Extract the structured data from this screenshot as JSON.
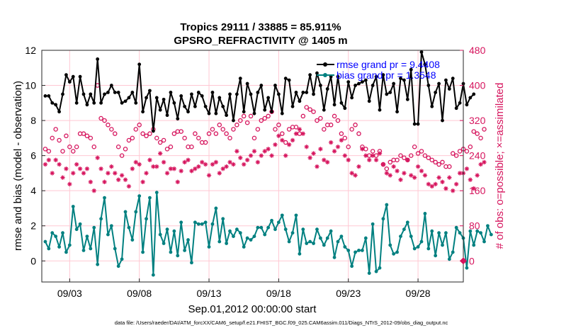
{
  "chart_data": {
    "type": "line",
    "title_line1": "Tropics 29111 / 33885 = 85.911%",
    "title_line2": "GPSRO_REFRACTIVITY @ 1405 m",
    "xlabel": "Sep.01,2012 00:00:00 start",
    "ylabel_left": "rmse and bias (model - observation)",
    "ylabel_right": "# of obs: o=possible; ×=assimilated",
    "x_tick_labels": [
      "09/03",
      "09/08",
      "09/13",
      "09/18",
      "09/23",
      "09/28"
    ],
    "x_tick_days": [
      3,
      8,
      13,
      18,
      23,
      28
    ],
    "xlim_days": [
      1,
      31.25
    ],
    "ylim_left": [
      -1.2,
      12
    ],
    "y_ticks_left": [
      "0",
      "2",
      "4",
      "6",
      "8",
      "10",
      "12"
    ],
    "ylim_right": [
      -48,
      480
    ],
    "y_ticks_right": [
      "0",
      "80",
      "160",
      "240",
      "320",
      "400",
      "480"
    ],
    "legend": [
      {
        "label": "rmse grand pr = 9.4408",
        "color": "#000000"
      },
      {
        "label": "bias grand pr = 1.3548",
        "color": "#008080"
      }
    ],
    "colors": {
      "rmse": "#000000",
      "bias": "#008080",
      "obs": "#d6145d",
      "legend_text": "#0000ff",
      "grid": "#ffc8d3"
    },
    "series": [
      {
        "name": "rmse",
        "axis": "left",
        "values": [
          9.4,
          9.4,
          9.0,
          8.9,
          8.5,
          9.5,
          10.6,
          10.2,
          10.5,
          9.0,
          10.5,
          9.5,
          8.9,
          9.5,
          9.0,
          11.5,
          9.0,
          9.5,
          9.6,
          10.0,
          9.6,
          9.6,
          9.0,
          9.1,
          9.3,
          9.6,
          9.0,
          11.2,
          8.5,
          9.3,
          9.7,
          7.4,
          9.3,
          8.6,
          9.2,
          8.3,
          9.6,
          9.0,
          8.1,
          9.4,
          8.8,
          8.5,
          9.5,
          8.8,
          9.6,
          9.4,
          8.8,
          8.4,
          9.6,
          8.4,
          9.3,
          8.8,
          8.3,
          9.5,
          8.0,
          9.5,
          10.4,
          8.5,
          10.1,
          9.5,
          8.4,
          9.6,
          10.0,
          8.6,
          9.3,
          8.5,
          10.0,
          9.5,
          8.4,
          10.4,
          10.3,
          8.8,
          9.6,
          9.1,
          9.6,
          9.6,
          10.6,
          9.5,
          10.7,
          10.0,
          8.6,
          9.8,
          10.5,
          8.9,
          10.5,
          9.0,
          8.7,
          10.2,
          9.3,
          10.0,
          10.1,
          10.2,
          10.3,
          9.1,
          10.0,
          10.5,
          8.6,
          10.6,
          9.5,
          9.6,
          10.1,
          8.5,
          10.4,
          10.3,
          9.2,
          10.9,
          7.8,
          7.8,
          11.9,
          11.2,
          10.0,
          8.8,
          9.6,
          10.1,
          8.0,
          10.3,
          9.8,
          10.4,
          8.7,
          9.0,
          10.1,
          8.9,
          9.3,
          9.5
        ]
      },
      {
        "name": "bias",
        "axis": "left",
        "values": [
          1.1,
          0.7,
          1.6,
          1.4,
          0.8,
          1.6,
          0.5,
          0.9,
          3.1,
          1.8,
          2.1,
          0.6,
          1.4,
          0.7,
          1.9,
          -0.2,
          2.4,
          3.6,
          1.5,
          2.0,
          0.7,
          -0.3,
          0.1,
          2.8,
          1.9,
          1.2,
          2.8,
          3.7,
          0.5,
          2.4,
          3.6,
          -0.8,
          3.9,
          1.5,
          1.0,
          1.8,
          0.5,
          1.7,
          0.3,
          2.2,
          0.6,
          1.2,
          -0.1,
          2.2,
          2.1,
          2.1,
          2.2,
          0.8,
          2.1,
          3.0,
          1.1,
          2.4,
          1.0,
          1.7,
          1.4,
          1.8,
          1.6,
          0.8,
          1.3,
          1.2,
          1.4,
          1.9,
          1.9,
          1.5,
          1.9,
          2.3,
          1.8,
          2.2,
          2.6,
          1.8,
          1.1,
          1.6,
          2.6,
          0.4,
          1.8,
          1.0,
          1.1,
          1.0,
          1.8,
          1.3,
          0.9,
          1.3,
          1.7,
          0.2,
          1.1,
          1.4,
          0.8,
          0.6,
          -0.3,
          0.5,
          0.6,
          0.6,
          1.3,
          -0.7,
          2.1,
          -0.6,
          -0.4,
          2.4,
          3.2,
          0.9,
          0.4,
          0.5,
          1.4,
          1.8,
          2.2,
          1.4,
          0.7,
          0.8,
          1.1,
          2.7,
          0.7,
          1.7,
          0.3,
          1.6,
          0.9,
          1.6,
          0.1,
          0.5,
          1.9,
          1.6,
          1.3,
          -0.4,
          1.7,
          0.9,
          1.7,
          1.6,
          1.1,
          2.0,
          1.5
        ]
      },
      {
        "name": "possible",
        "axis": "right",
        "values": [
          255,
          250,
          280,
          300,
          275,
          250,
          285,
          260,
          250,
          260,
          290,
          290,
          285,
          280,
          260,
          400,
          325,
          320,
          310,
          300,
          290,
          260,
          240,
          255,
          275,
          280,
          300,
          310,
          290,
          285,
          290,
          300,
          280,
          270,
          275,
          255,
          260,
          290,
          295,
          295,
          280,
          260,
          260,
          290,
          280,
          270,
          270,
          290,
          300,
          290,
          310,
          300,
          290,
          280,
          300,
          310,
          320,
          330,
          315,
          330,
          280,
          300,
          320,
          325,
          330,
          340,
          300,
          310,
          290,
          270,
          300,
          305,
          305,
          290,
          330,
          350,
          345,
          340,
          320,
          325,
          300,
          310,
          310,
          330,
          320,
          290,
          280,
          260,
          300,
          310,
          290,
          260,
          255,
          240,
          250,
          240,
          250,
          220,
          210,
          225,
          230,
          230,
          240,
          235,
          230,
          240,
          260,
          245,
          250,
          240,
          235,
          230,
          225,
          220,
          225,
          215,
          215,
          245,
          240,
          250,
          255,
          250,
          260,
          295,
          290,
          280,
          300
        ]
      },
      {
        "name": "assimilated",
        "axis": "right",
        "values": [
          220,
          230,
          200,
          230,
          220,
          190,
          210,
          175,
          200,
          220,
          210,
          200,
          210,
          180,
          160,
          235,
          210,
          180,
          200,
          215,
          200,
          185,
          195,
          185,
          170,
          210,
          225,
          220,
          180,
          200,
          230,
          215,
          215,
          245,
          225,
          200,
          210,
          210,
          180,
          205,
          225,
          230,
          205,
          210,
          215,
          225,
          220,
          195,
          220,
          225,
          200,
          210,
          215,
          225,
          220,
          250,
          235,
          220,
          230,
          240,
          250,
          225,
          240,
          250,
          255,
          240,
          265,
          285,
          275,
          240,
          265,
          275,
          290,
          300,
          290,
          260,
          235,
          245,
          215,
          255,
          230,
          225,
          270,
          250,
          260,
          275,
          240,
          230,
          200,
          195,
          215,
          255,
          240,
          230,
          240,
          230,
          245,
          220,
          200,
          195,
          215,
          205,
          185,
          200,
          230,
          195,
          190,
          215,
          205,
          195,
          175,
          170,
          175,
          190,
          180,
          165,
          190,
          160,
          175,
          200,
          200,
          210,
          185,
          165,
          195,
          220,
          225
        ]
      }
    ],
    "annotations": {
      "right_axis_marker_value": 0
    }
  },
  "footer": {
    "data_file": "data file: /Users/raeder/DAI/ATM_forcXX/CAM6_setup/f.e21.FHIST_BGC.f09_025.CAM6assim.011/Diags_NTrS_2012-09/obs_diag_output.nc"
  }
}
